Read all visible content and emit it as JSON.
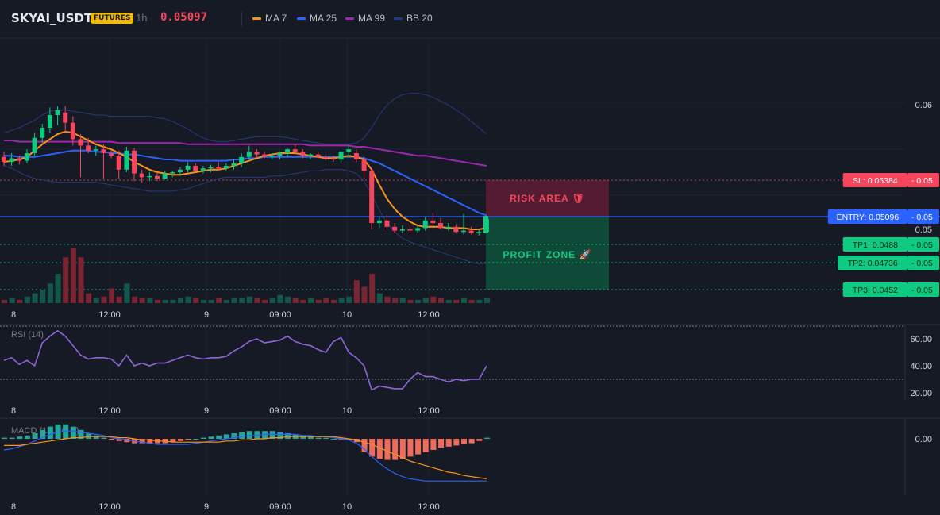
{
  "header": {
    "symbol": "SKYAI_USDT",
    "badge": "FUTURES",
    "timeframe": "1h",
    "price": "0.05097",
    "legend": [
      {
        "label": "MA 7",
        "color": "#f7931a"
      },
      {
        "label": "MA 25",
        "color": "#2962ff"
      },
      {
        "label": "MA 99",
        "color": "#9c27b0"
      },
      {
        "label": "BB 20",
        "color": "#1e3a8a"
      }
    ]
  },
  "levels": {
    "sl": {
      "label": "SL: 0.05384",
      "value": "0.05",
      "color": "#f6465d"
    },
    "entry": {
      "label": "ENTRY: 0.05096",
      "value": "0.05",
      "color": "#2962ff"
    },
    "tp1": {
      "label": "TP1: 0.0488",
      "value": "0.05",
      "color": "#0ecb81"
    },
    "tp2": {
      "label": "TP2: 0.04736",
      "value": "0.05",
      "color": "#0ecb81"
    },
    "tp3": {
      "label": "TP3: 0.0452",
      "value": "0.05",
      "color": "#0ecb81"
    }
  },
  "zones": {
    "risk": "RISK AREA 🛡",
    "profit": "PROFIT ZONE 🚀"
  },
  "price_axis": [
    {
      "label": "0.06",
      "value": 0.0598
    },
    {
      "label": "0.05",
      "value": 0.05
    }
  ],
  "time_axis": [
    "8",
    "12:00",
    "9",
    "09:00",
    "10",
    "12:00"
  ],
  "rsi": {
    "label": "RSI (14)",
    "ticks": [
      "60.00",
      "40.00",
      "20.00"
    ]
  },
  "macd": {
    "label": "MACD (12, 26, 9)",
    "ticks": [
      "0.00"
    ]
  },
  "chart_data": {
    "type": "candlestick",
    "colors": {
      "up": "#0ecb81",
      "down": "#f6465d"
    },
    "candles": [
      [
        0.0557,
        0.0561,
        0.055,
        0.0553
      ],
      [
        0.0553,
        0.056,
        0.055,
        0.0556
      ],
      [
        0.0556,
        0.0558,
        0.0551,
        0.0554
      ],
      [
        0.0554,
        0.0563,
        0.0552,
        0.056
      ],
      [
        0.056,
        0.0576,
        0.0558,
        0.0572
      ],
      [
        0.0572,
        0.0583,
        0.0568,
        0.058
      ],
      [
        0.058,
        0.0596,
        0.0576,
        0.059
      ],
      [
        0.059,
        0.0597,
        0.0582,
        0.0594
      ],
      [
        0.0592,
        0.0597,
        0.0576,
        0.0584
      ],
      [
        0.0584,
        0.0589,
        0.0566,
        0.0571
      ],
      [
        0.0571,
        0.0575,
        0.0541,
        0.0566
      ],
      [
        0.0566,
        0.0572,
        0.056,
        0.0562
      ],
      [
        0.0562,
        0.0566,
        0.0558,
        0.0563
      ],
      [
        0.0563,
        0.0567,
        0.054,
        0.056
      ],
      [
        0.056,
        0.0562,
        0.0556,
        0.0558
      ],
      [
        0.0558,
        0.0562,
        0.054,
        0.0547
      ],
      [
        0.0547,
        0.0565,
        0.0545,
        0.0562
      ],
      [
        0.0562,
        0.0564,
        0.0538,
        0.0544
      ],
      [
        0.0544,
        0.0547,
        0.0537,
        0.0541
      ],
      [
        0.0541,
        0.0545,
        0.0538,
        0.0542
      ],
      [
        0.0542,
        0.0545,
        0.0538,
        0.054
      ],
      [
        0.054,
        0.0546,
        0.0539,
        0.0544
      ],
      [
        0.0544,
        0.0546,
        0.0541,
        0.0545
      ],
      [
        0.0545,
        0.0549,
        0.0542,
        0.0547
      ],
      [
        0.0547,
        0.0553,
        0.0545,
        0.055
      ],
      [
        0.055,
        0.0552,
        0.0545,
        0.0546
      ],
      [
        0.0546,
        0.055,
        0.0544,
        0.0548
      ],
      [
        0.0548,
        0.0551,
        0.0545,
        0.0549
      ],
      [
        0.0549,
        0.0553,
        0.0546,
        0.0548
      ],
      [
        0.0548,
        0.0552,
        0.0546,
        0.055
      ],
      [
        0.055,
        0.0555,
        0.0547,
        0.0552
      ],
      [
        0.0552,
        0.056,
        0.0549,
        0.0557
      ],
      [
        0.0557,
        0.0566,
        0.0555,
        0.0561
      ],
      [
        0.0561,
        0.0563,
        0.0556,
        0.0559
      ],
      [
        0.0559,
        0.0561,
        0.0556,
        0.0557
      ],
      [
        0.0557,
        0.056,
        0.0555,
        0.0558
      ],
      [
        0.0558,
        0.0561,
        0.0555,
        0.056
      ],
      [
        0.056,
        0.0564,
        0.0557,
        0.0563
      ],
      [
        0.0563,
        0.0567,
        0.0559,
        0.0561
      ],
      [
        0.0561,
        0.0563,
        0.0556,
        0.0558
      ],
      [
        0.0558,
        0.056,
        0.0555,
        0.0559
      ],
      [
        0.0559,
        0.0561,
        0.0556,
        0.0557
      ],
      [
        0.0557,
        0.0559,
        0.0554,
        0.0556
      ],
      [
        0.0556,
        0.0558,
        0.0553,
        0.0555
      ],
      [
        0.0555,
        0.0562,
        0.0553,
        0.0561
      ],
      [
        0.0561,
        0.0566,
        0.0557,
        0.0563
      ],
      [
        0.056,
        0.0563,
        0.0553,
        0.0555
      ],
      [
        0.0555,
        0.0557,
        0.054,
        0.0546
      ],
      [
        0.0546,
        0.0548,
        0.05,
        0.0505
      ],
      [
        0.0505,
        0.051,
        0.0501,
        0.0507
      ],
      [
        0.0507,
        0.0511,
        0.05,
        0.0502
      ],
      [
        0.0502,
        0.0505,
        0.0497,
        0.0499
      ],
      [
        0.0499,
        0.0503,
        0.0497,
        0.05
      ],
      [
        0.05,
        0.0504,
        0.0497,
        0.0499
      ],
      [
        0.0499,
        0.0503,
        0.0497,
        0.0501
      ],
      [
        0.0501,
        0.051,
        0.0499,
        0.0507
      ],
      [
        0.0507,
        0.0513,
        0.0503,
        0.0505
      ],
      [
        0.0505,
        0.0509,
        0.05,
        0.0501
      ],
      [
        0.0501,
        0.0505,
        0.0499,
        0.0502
      ],
      [
        0.0502,
        0.0504,
        0.0497,
        0.0498
      ],
      [
        0.0498,
        0.0512,
        0.0496,
        0.0499
      ],
      [
        0.0499,
        0.0502,
        0.0496,
        0.0497
      ],
      [
        0.0497,
        0.05,
        0.0495,
        0.0498
      ],
      [
        0.0498,
        0.0509,
        0.0497,
        0.0508
      ]
    ],
    "volumes": [
      2,
      3,
      2,
      4,
      6,
      8,
      12,
      18,
      28,
      34,
      28,
      6,
      3,
      4,
      9,
      4,
      12,
      4,
      3,
      3,
      2,
      2,
      2,
      3,
      4,
      3,
      2,
      2,
      3,
      2,
      3,
      3,
      4,
      3,
      2,
      3,
      5,
      4,
      3,
      2,
      3,
      2,
      3,
      2,
      3,
      4,
      14,
      10,
      18,
      6,
      4,
      3,
      3,
      2,
      2,
      3,
      4,
      3,
      2,
      2,
      3,
      2,
      2,
      3
    ],
    "ma7": [
      0.0553,
      0.0554,
      0.0555,
      0.0557,
      0.0562,
      0.0567,
      0.0571,
      0.0575,
      0.0577,
      0.0576,
      0.0573,
      0.057,
      0.0567,
      0.0565,
      0.0563,
      0.056,
      0.0557,
      0.0553,
      0.055,
      0.0547,
      0.0545,
      0.0544,
      0.0543,
      0.0543,
      0.0544,
      0.0545,
      0.0546,
      0.0547,
      0.0547,
      0.0548,
      0.055,
      0.0552,
      0.0554,
      0.0556,
      0.0558,
      0.0559,
      0.056,
      0.056,
      0.056,
      0.0559,
      0.0558,
      0.0557,
      0.0556,
      0.0556,
      0.0557,
      0.0558,
      0.0557,
      0.0555,
      0.0547,
      0.0535,
      0.0524,
      0.0516,
      0.051,
      0.0506,
      0.0503,
      0.0502,
      0.0502,
      0.0502,
      0.0501,
      0.0501,
      0.0501,
      0.05,
      0.05,
      0.0501
    ],
    "ma25": [
      0.0558,
      0.0558,
      0.0557,
      0.0557,
      0.0557,
      0.0558,
      0.0559,
      0.056,
      0.0561,
      0.0562,
      0.0562,
      0.0562,
      0.0561,
      0.0561,
      0.056,
      0.056,
      0.0559,
      0.0559,
      0.0558,
      0.0557,
      0.0556,
      0.0555,
      0.0555,
      0.0554,
      0.0554,
      0.0554,
      0.0554,
      0.0554,
      0.0554,
      0.0554,
      0.0555,
      0.0555,
      0.0556,
      0.0556,
      0.0557,
      0.0557,
      0.0557,
      0.0557,
      0.0557,
      0.0557,
      0.0557,
      0.0557,
      0.0557,
      0.0557,
      0.0557,
      0.0557,
      0.0557,
      0.0556,
      0.0554,
      0.0552,
      0.0549,
      0.0546,
      0.0543,
      0.054,
      0.0537,
      0.0534,
      0.0531,
      0.0528,
      0.0525,
      0.0522,
      0.0519,
      0.0516,
      0.0513,
      0.0511
    ],
    "ma99": [
      0.057,
      0.057,
      0.0569,
      0.0569,
      0.0569,
      0.0569,
      0.0569,
      0.0569,
      0.0569,
      0.0569,
      0.0569,
      0.0569,
      0.0569,
      0.0569,
      0.0569,
      0.0568,
      0.0568,
      0.0568,
      0.0568,
      0.0568,
      0.0568,
      0.0568,
      0.0568,
      0.0568,
      0.0567,
      0.0567,
      0.0567,
      0.0567,
      0.0567,
      0.0567,
      0.0567,
      0.0567,
      0.0567,
      0.0567,
      0.0567,
      0.0567,
      0.0567,
      0.0567,
      0.0567,
      0.0567,
      0.0566,
      0.0566,
      0.0566,
      0.0566,
      0.0566,
      0.0566,
      0.0565,
      0.0565,
      0.0564,
      0.0563,
      0.0562,
      0.0561,
      0.056,
      0.0559,
      0.0558,
      0.0558,
      0.0557,
      0.0556,
      0.0555,
      0.0554,
      0.0553,
      0.0552,
      0.0551,
      0.055
    ],
    "bb_upper": [
      0.0576,
      0.0578,
      0.058,
      0.0583,
      0.0586,
      0.059,
      0.0593,
      0.0594,
      0.0594,
      0.0593,
      0.0592,
      0.0591,
      0.059,
      0.059,
      0.0589,
      0.0589,
      0.0589,
      0.0589,
      0.0589,
      0.0589,
      0.0588,
      0.0587,
      0.0585,
      0.0582,
      0.0579,
      0.0575,
      0.0572,
      0.057,
      0.0569,
      0.0569,
      0.057,
      0.0571,
      0.0572,
      0.0573,
      0.0573,
      0.0573,
      0.0573,
      0.0572,
      0.0571,
      0.057,
      0.0569,
      0.0568,
      0.0567,
      0.0567,
      0.0567,
      0.0567,
      0.0568,
      0.0572,
      0.058,
      0.059,
      0.0598,
      0.0603,
      0.0606,
      0.0607,
      0.0607,
      0.0606,
      0.0604,
      0.0601,
      0.0598,
      0.0594,
      0.059,
      0.0585,
      0.058,
      0.0575
    ],
    "bb_lower": [
      0.055,
      0.0548,
      0.0545,
      0.0542,
      0.054,
      0.0539,
      0.0538,
      0.0537,
      0.0537,
      0.0537,
      0.0537,
      0.0537,
      0.0537,
      0.0536,
      0.0535,
      0.0534,
      0.0533,
      0.0532,
      0.0531,
      0.053,
      0.053,
      0.053,
      0.053,
      0.0531,
      0.0532,
      0.0534,
      0.0536,
      0.0538,
      0.054,
      0.0541,
      0.0541,
      0.0541,
      0.0541,
      0.0541,
      0.0541,
      0.0542,
      0.0542,
      0.0543,
      0.0544,
      0.0545,
      0.0546,
      0.0546,
      0.0547,
      0.0547,
      0.0547,
      0.0546,
      0.0544,
      0.0538,
      0.0527,
      0.0515,
      0.0505,
      0.0498,
      0.0493,
      0.049,
      0.0488,
      0.0486,
      0.0484,
      0.0482,
      0.048,
      0.0478,
      0.0476,
      0.0474,
      0.0473,
      0.0473
    ],
    "rsi": [
      44,
      46,
      41,
      44,
      40,
      57,
      62,
      66,
      62,
      55,
      48,
      45,
      46,
      46,
      45,
      40,
      48,
      40,
      42,
      40,
      42,
      42,
      44,
      46,
      48,
      46,
      45,
      46,
      46,
      47,
      51,
      54,
      58,
      60,
      57,
      58,
      59,
      62,
      58,
      56,
      55,
      52,
      50,
      58,
      61,
      50,
      46,
      40,
      22,
      25,
      24,
      23,
      23,
      30,
      35,
      32,
      32,
      30,
      28,
      30,
      29,
      30,
      30,
      40
    ],
    "macd_hist": [
      0.0001,
      0.0001,
      0.0002,
      0.0003,
      0.0005,
      0.0008,
      0.0011,
      0.0013,
      0.0013,
      0.0011,
      0.0008,
      0.0005,
      0.0003,
      0.0001,
      -0.0001,
      -0.0002,
      -0.0003,
      -0.0004,
      -0.0004,
      -0.0004,
      -0.0004,
      -0.0004,
      -0.0003,
      -0.0002,
      -0.0001,
      0,
      0.0001,
      0.0002,
      0.0003,
      0.0004,
      0.0005,
      0.0006,
      0.0007,
      0.0007,
      0.0007,
      0.0007,
      0.0006,
      0.0005,
      0.0004,
      0.0003,
      0.0002,
      0.0001,
      0.0001,
      0,
      -0.0001,
      -0.0001,
      -0.0003,
      -0.0012,
      -0.0016,
      -0.0018,
      -0.0019,
      -0.0019,
      -0.0018,
      -0.0016,
      -0.0014,
      -0.0012,
      -0.001,
      -0.0008,
      -0.0007,
      -0.0006,
      -0.0005,
      -0.0004,
      -0.0002,
      0.0001
    ],
    "macd_line": [
      -0.001,
      -0.0009,
      -0.0007,
      -0.0005,
      -0.0002,
      0.0001,
      0.0004,
      0.0006,
      0.0007,
      0.0007,
      0.0006,
      0.0005,
      0.0004,
      0.0003,
      0.0001,
      0,
      -0.0001,
      -0.0002,
      -0.0003,
      -0.0004,
      -0.0005,
      -0.0005,
      -0.0005,
      -0.0005,
      -0.0005,
      -0.0004,
      -0.0003,
      -0.0002,
      -0.0001,
      0,
      0.0001,
      0.0002,
      0.0003,
      0.0003,
      0.0004,
      0.0004,
      0.0004,
      0.0004,
      0.0004,
      0.0003,
      0.0003,
      0.0002,
      0.0002,
      0.0001,
      0,
      -0.0001,
      -0.0004,
      -0.0009,
      -0.0016,
      -0.0022,
      -0.0027,
      -0.0031,
      -0.0034,
      -0.0036,
      -0.0037,
      -0.0038,
      -0.0038,
      -0.0038,
      -0.0038,
      -0.0038,
      -0.0038,
      -0.0038,
      -0.0038,
      -0.0038
    ],
    "macd_signal": [
      -0.0006,
      -0.0006,
      -0.0006,
      -0.0005,
      -0.0004,
      -0.0003,
      -0.0002,
      -0.0001,
      0,
      0.0001,
      0.0001,
      0.0002,
      0.0002,
      0.0002,
      0.0002,
      0.0001,
      0.0001,
      0,
      -0.0001,
      -0.0001,
      -0.0002,
      -0.0002,
      -0.0003,
      -0.0003,
      -0.0003,
      -0.0003,
      -0.0003,
      -0.0003,
      -0.0003,
      -0.0002,
      -0.0002,
      -0.0001,
      -0.0001,
      0,
      0,
      0.0001,
      0.0001,
      0.0002,
      0.0002,
      0.0002,
      0.0002,
      0.0002,
      0.0002,
      0.0002,
      0.0001,
      0,
      -0.0001,
      -0.0003,
      -0.0005,
      -0.0008,
      -0.0011,
      -0.0014,
      -0.0017,
      -0.002,
      -0.0022,
      -0.0024,
      -0.0026,
      -0.0028,
      -0.003,
      -0.0031,
      -0.0033,
      -0.0034,
      -0.0035,
      -0.0036
    ]
  }
}
